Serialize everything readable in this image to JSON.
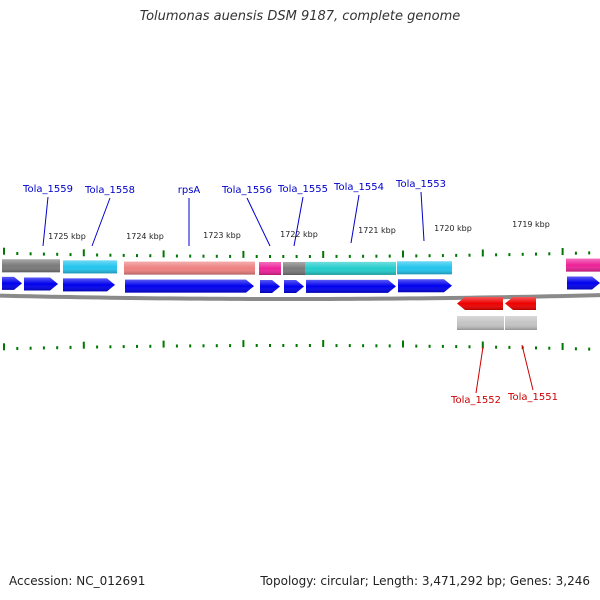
{
  "header": {
    "title": "Tolumonas auensis DSM 9187, complete genome"
  },
  "footer": {
    "accession": "Accession: NC_012691",
    "topology": "Topology: circular; Length: 3,471,292 bp; Genes: 3,246"
  },
  "colors": {
    "forward_arrow": "#0000ee",
    "reverse_arrow": "#ee0000",
    "backbone": "#8a8a8a",
    "tick": "#007700",
    "forward_label": "#0000cc",
    "reverse_label": "#cc0000",
    "cog_gray": "#7a7a7a",
    "cog_cyan": "#22c4ee",
    "cog_salmon": "#ee8080",
    "cog_magenta": "#ee2299",
    "cog_teal": "#22cccc",
    "cog_lightgray": "#c4c4c4"
  },
  "ruler": [
    "1725 kbp",
    "1724 kbp",
    "1723 kbp",
    "1722 kbp",
    "1721 kbp",
    "1720 kbp",
    "1719 kbp"
  ],
  "forward_genes": [
    "Tola_1559",
    "Tola_1558",
    "rpsA",
    "Tola_1556",
    "Tola_1555",
    "Tola_1554",
    "Tola_1553"
  ],
  "reverse_genes": [
    "Tola_1552",
    "Tola_1551"
  ]
}
